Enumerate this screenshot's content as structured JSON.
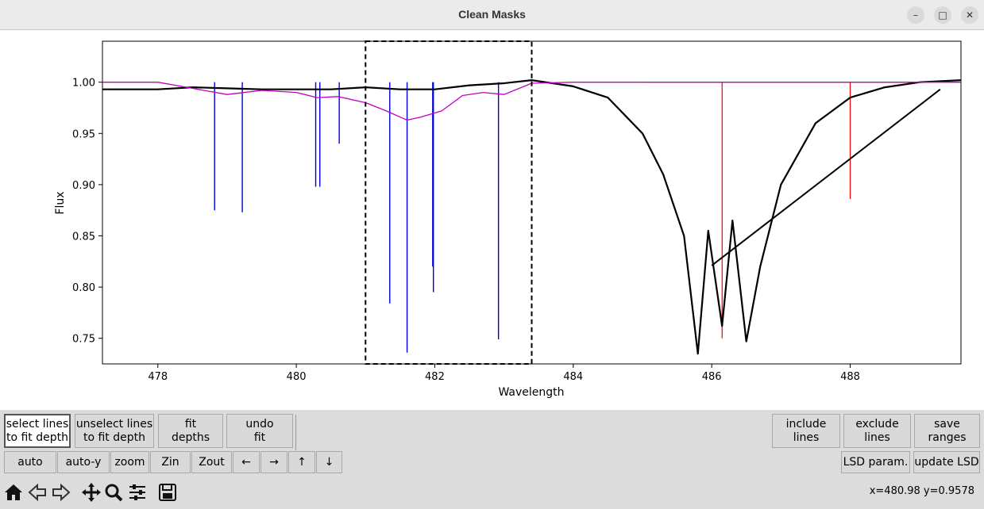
{
  "window": {
    "title": "Clean Masks",
    "minimize_icon": "minimize-icon",
    "maximize_icon": "maximize-icon",
    "close_icon": "close-icon"
  },
  "plot": {
    "xlabel": "Wavelength",
    "ylabel": "Flux",
    "xticks": [
      "478",
      "480",
      "482",
      "484",
      "486",
      "488"
    ],
    "yticks": [
      "1.00",
      "0.95",
      "0.90",
      "0.85",
      "0.80",
      "0.75"
    ],
    "colors": {
      "observed": "#000000",
      "model": "#c000c0",
      "mask_lines": "#0000dd",
      "excluded_lines": "#ee0000"
    }
  },
  "chart_data": {
    "type": "line",
    "xlabel": "Wavelength",
    "ylabel": "Flux",
    "xlim": [
      477.2,
      489.6
    ],
    "ylim": [
      0.725,
      1.04
    ],
    "series": [
      {
        "x": [
          477.2,
          478,
          478.5,
          479,
          479.5,
          480,
          480.5,
          481,
          481.5,
          482,
          482.5,
          483,
          483.4,
          484,
          484.5,
          485,
          485.3,
          485.6,
          485.8,
          485.95,
          486.15,
          486.3,
          486.5,
          486.7,
          487,
          487.5,
          488,
          488.5,
          489,
          489.6
        ],
        "y": [
          0.993,
          0.993,
          0.995,
          0.994,
          0.993,
          0.993,
          0.993,
          0.995,
          0.993,
          0.993,
          0.997,
          0.999,
          1.002,
          0.996,
          0.985,
          0.95,
          0.91,
          0.85,
          0.735,
          0.855,
          0.762,
          0.865,
          0.747,
          0.82,
          0.9,
          0.96,
          0.985,
          0.995,
          1.0,
          1.002
        ]
      },
      {
        "x": [
          477.2,
          478,
          478.5,
          479,
          479.5,
          480,
          480.3,
          480.6,
          481,
          481.3,
          481.6,
          481.8,
          482.1,
          482.4,
          482.7,
          483,
          483.4,
          484,
          485,
          486,
          487,
          488,
          489.6
        ],
        "y": [
          1.0,
          1.0,
          0.994,
          0.988,
          0.992,
          0.99,
          0.985,
          0.986,
          0.98,
          0.972,
          0.963,
          0.966,
          0.972,
          0.987,
          0.99,
          0.988,
          0.999,
          1.0,
          1.0,
          1.0,
          1.0,
          1.0,
          1.0
        ]
      }
    ],
    "mask_lines": {
      "x": [
        478.82,
        479.22,
        480.28,
        480.34,
        480.62,
        481.35,
        481.6,
        481.97,
        481.98,
        482.92
      ],
      "depth": [
        0.875,
        0.873,
        0.898,
        0.898,
        0.94,
        0.784,
        0.736,
        0.82,
        0.795,
        0.749
      ]
    },
    "excluded_lines": {
      "x": [
        486.15,
        488.0
      ],
      "depth": [
        0.75,
        0.886
      ]
    },
    "selection_box": {
      "x": [
        481.0,
        483.4
      ]
    }
  },
  "buttons": {
    "select_lines": "select lines\nto fit depth",
    "unselect_lines": "unselect lines\nto fit depth",
    "fit_depths": "fit\ndepths",
    "undo_fit": "undo\nfit",
    "include_lines": "include\nlines",
    "exclude_lines": "exclude\nlines",
    "save_ranges": "save\nranges",
    "auto": "auto",
    "auto_y": "auto-y",
    "zoom": "zoom",
    "zin": "Zin",
    "zout": "Zout",
    "left": "←",
    "right": "→",
    "up": "↑",
    "down": "↓",
    "lsd_param": "LSD param.",
    "update_lsd": "update LSD"
  },
  "toolbar": {
    "icons": [
      "home-icon",
      "back-icon",
      "forward-icon",
      "pan-icon",
      "zoom-icon",
      "configure-icon",
      "save-icon"
    ]
  },
  "status": {
    "coords": "x=480.98 y=0.9578"
  }
}
